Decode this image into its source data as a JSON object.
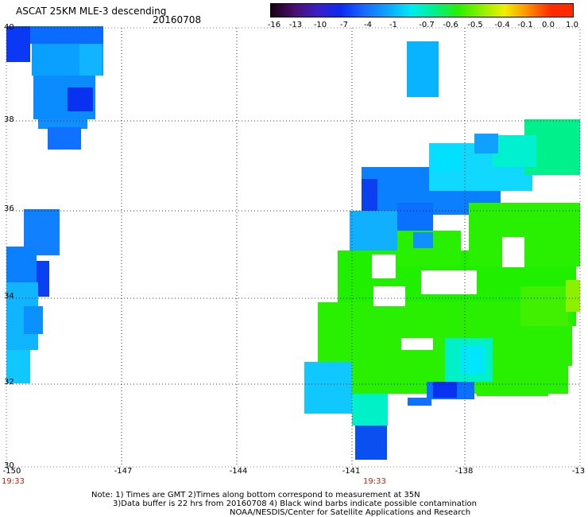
{
  "header": {
    "title": "ASCAT 25KM MLE-3 descending",
    "date": "20160708"
  },
  "colorbar": {
    "labels": [
      "-16",
      "-13",
      "-10",
      "-7",
      "-4",
      "-1",
      "-0.7",
      "-0.6",
      "-0.5",
      "-0.4",
      "-0.1",
      "0.0",
      "1.0"
    ],
    "colors": [
      "#1a0014",
      "#4a0f6e",
      "#3a1fc8",
      "#0a2cf0",
      "#1a6cff",
      "#0aa6ff",
      "#00ecf2",
      "#00f08c",
      "#28f000",
      "#8cf000",
      "#f0f000",
      "#ff8c00",
      "#ff2a00"
    ]
  },
  "axes": {
    "lat_labels": [
      "40",
      "38",
      "36",
      "34",
      "32",
      "30"
    ],
    "lon_labels": [
      "-150",
      "-147",
      "-144",
      "-141",
      "-138",
      "-13"
    ],
    "time_labels": [
      "19:33",
      "19:33"
    ]
  },
  "notes": [
    "Note: 1) Times are GMT 2)Times along bottom correspond to measurement at 35N",
    "3)Data buffer is 22 hrs from 20160708 4) Black wind barbs indicate possible contamination",
    "NOAA/NESDIS/Center for Satellite Applications and Research"
  ]
}
